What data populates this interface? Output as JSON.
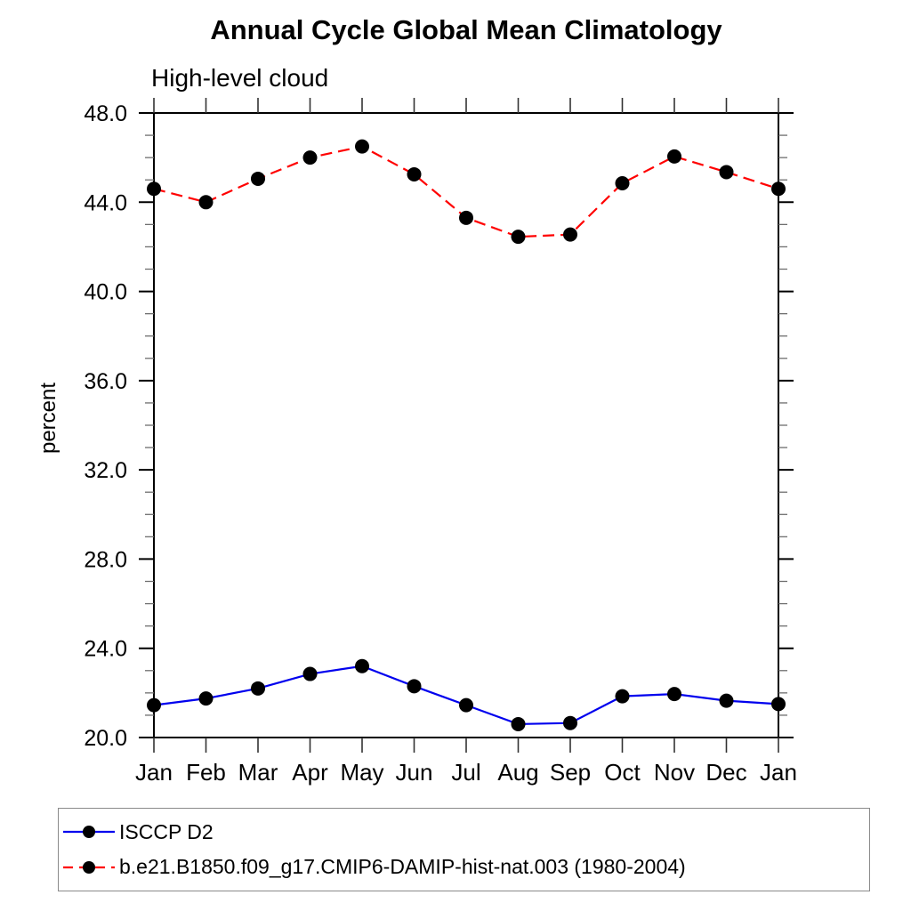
{
  "chart_data": {
    "type": "line",
    "title": "Annual Cycle Global Mean Climatology",
    "subtitle": "High-level cloud",
    "ylabel": "percent",
    "xlabel": "",
    "categories": [
      "Jan",
      "Feb",
      "Mar",
      "Apr",
      "May",
      "Jun",
      "Jul",
      "Aug",
      "Sep",
      "Oct",
      "Nov",
      "Dec",
      "Jan"
    ],
    "ylim": [
      20,
      48
    ],
    "ytick_interval": 4,
    "minor_ytick_interval": 1,
    "ytick_labels": [
      "20.0",
      "24.0",
      "28.0",
      "32.0",
      "36.0",
      "40.0",
      "44.0",
      "48.0"
    ],
    "grid": false,
    "legend_position": "bottom-left-box",
    "frame_color": "#000000",
    "marker_color": "#000000",
    "series": [
      {
        "name": "ISCCP D2",
        "color": "#0000ee",
        "style": "solid",
        "marker": "circle",
        "values": [
          21.45,
          21.75,
          22.2,
          22.85,
          23.2,
          22.3,
          21.45,
          20.6,
          20.65,
          21.85,
          21.95,
          21.65,
          21.5
        ]
      },
      {
        "name": "b.e21.B1850.f09_g17.CMIP6-DAMIP-hist-nat.003 (1980-2004)",
        "color": "#ff0000",
        "style": "dashed",
        "marker": "circle",
        "values": [
          44.6,
          44.0,
          45.05,
          46.0,
          46.5,
          45.25,
          43.3,
          42.45,
          42.55,
          44.85,
          46.05,
          45.35,
          44.6
        ]
      }
    ]
  }
}
